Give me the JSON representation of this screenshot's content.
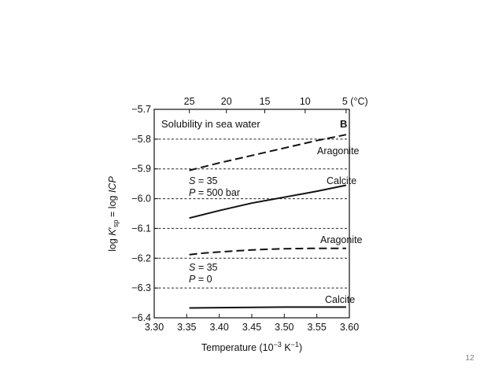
{
  "slide": {
    "page_number": "12"
  },
  "chart_data": {
    "type": "line",
    "panel_label": "B",
    "title": "Solubility in sea water",
    "xlabel_main": "Temperature  (10",
    "xlabel_exp": "−3",
    "xlabel_unit": " K",
    "xlabel_unit_exp": "−1",
    "xlabel_close": ")",
    "ylabel_prefix": "log ",
    "ylabel_k": "K",
    "ylabel_prime": "′",
    "ylabel_sub": "sp",
    "ylabel_mid": " = log ",
    "ylabel_icp": "ICP",
    "xlim": [
      3.3,
      3.6
    ],
    "ylim": [
      -6.4,
      -5.7
    ],
    "x_ticks": [
      {
        "value": 3.3,
        "label": "3.30"
      },
      {
        "value": 3.35,
        "label": "3.35"
      },
      {
        "value": 3.4,
        "label": "3.40"
      },
      {
        "value": 3.45,
        "label": "3.45"
      },
      {
        "value": 3.5,
        "label": "3.50"
      },
      {
        "value": 3.55,
        "label": "3.55"
      },
      {
        "value": 3.6,
        "label": "3.60"
      }
    ],
    "y_ticks": [
      {
        "value": -5.7,
        "label": "−5.7"
      },
      {
        "value": -5.8,
        "label": "−5.8"
      },
      {
        "value": -5.9,
        "label": "−5.9"
      },
      {
        "value": -6.0,
        "label": "−6.0"
      },
      {
        "value": -6.1,
        "label": "−6.1"
      },
      {
        "value": -6.2,
        "label": "−6.2"
      },
      {
        "value": -6.3,
        "label": "−6.3"
      },
      {
        "value": -6.4,
        "label": "−6.4"
      }
    ],
    "top_axis_ticks": [
      {
        "value": 3.354,
        "label": "25"
      },
      {
        "value": 3.411,
        "label": "20"
      },
      {
        "value": 3.47,
        "label": "15"
      },
      {
        "value": 3.532,
        "label": "10"
      },
      {
        "value": 3.595,
        "label": "5 (°C)"
      }
    ],
    "dashed_gridlines_y": [
      -5.8,
      -5.9,
      -6.0,
      -6.1,
      -6.2,
      -6.3
    ],
    "grid": "dashed horizontal lines",
    "series": [
      {
        "name": "Aragonite",
        "style": "dashed",
        "x": [
          3.354,
          3.4,
          3.45,
          3.5,
          3.55,
          3.595
        ],
        "y": [
          -5.905,
          -5.88,
          -5.855,
          -5.83,
          -5.805,
          -5.785
        ]
      },
      {
        "name": "Calcite",
        "style": "solid",
        "x": [
          3.354,
          3.4,
          3.45,
          3.5,
          3.55,
          3.595
        ],
        "y": [
          -6.065,
          -6.04,
          -6.015,
          -5.995,
          -5.975,
          -5.955
        ]
      },
      {
        "name": "Aragonite",
        "style": "dashed",
        "x": [
          3.354,
          3.38,
          3.42,
          3.46,
          3.5,
          3.54,
          3.595
        ],
        "y": [
          -6.188,
          -6.182,
          -6.176,
          -6.171,
          -6.168,
          -6.167,
          -6.167
        ]
      },
      {
        "name": "Calcite",
        "style": "solid",
        "x": [
          3.354,
          3.4,
          3.45,
          3.5,
          3.55,
          3.595
        ],
        "y": [
          -6.367,
          -6.366,
          -6.365,
          -6.364,
          -6.364,
          -6.364
        ]
      }
    ],
    "annotations": [
      {
        "id": "aragonite-high",
        "text": "Aragonite"
      },
      {
        "id": "calcite-high",
        "text": "Calcite"
      },
      {
        "id": "aragonite-low",
        "text": "Aragonite"
      },
      {
        "id": "calcite-low",
        "text": "Calcite"
      },
      {
        "id": "cond-high-s",
        "text_italic": "S",
        "text_rest": " = 35"
      },
      {
        "id": "cond-high-p",
        "text_italic": "P",
        "text_rest": " = 500 bar"
      },
      {
        "id": "cond-low-s",
        "text_italic": "S",
        "text_rest": " = 35"
      },
      {
        "id": "cond-low-p",
        "text_italic": "P",
        "text_rest": " = 0"
      }
    ]
  }
}
